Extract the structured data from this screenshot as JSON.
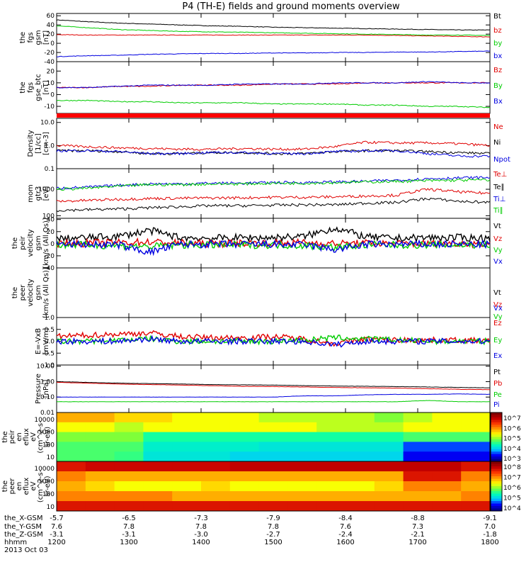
{
  "chart_data": {
    "type": "line",
    "title": "P4 (TH-E) fields and ground moments overview",
    "time_ticks": [
      "1200",
      "1300",
      "1400",
      "1500",
      "1600",
      "1700",
      "1800"
    ],
    "ephemeris": [
      {
        "label": "the_X-GSM",
        "values": [
          "-5.7",
          "-6.5",
          "-7.3",
          "-7.9",
          "-8.4",
          "-8.8",
          "-9.1"
        ]
      },
      {
        "label": "the_Y-GSM",
        "values": [
          "7.6",
          "7.8",
          "7.8",
          "7.8",
          "7.6",
          "7.3",
          "7.0"
        ]
      },
      {
        "label": "the_Z-GSM",
        "values": [
          "-3.1",
          "-3.1",
          "-3.0",
          "-2.7",
          "-2.4",
          "-2.1",
          "-1.8"
        ]
      },
      {
        "label": "hhmm",
        "values": []
      }
    ],
    "date_label": "2013 Oct 03",
    "panels": [
      {
        "id": "fgs-gsm",
        "ylabel": [
          "the",
          "fgs",
          "gsm",
          "[nT]"
        ],
        "scale": "linear",
        "ylim": [
          -40,
          65
        ],
        "yticks": [
          "60",
          "40",
          "20",
          "0",
          "-20",
          "-40"
        ],
        "series": [
          {
            "name": "Bt",
            "color": "#000000",
            "values": [
              51,
              47,
              44,
              42,
              40,
              38,
              37,
              35,
              34,
              33,
              32,
              31,
              30,
              29,
              29
            ]
          },
          {
            "name": "bz",
            "color": "#e00000",
            "values": [
              19,
              18,
              18,
              18,
              18,
              18,
              18,
              18,
              18,
              18,
              18,
              17,
              16,
              15,
              14
            ]
          },
          {
            "name": "by",
            "color": "#00cc00",
            "values": [
              38,
              34,
              30,
              28,
              26,
              25,
              24,
              23,
              22,
              21,
              20,
              19,
              18,
              18,
              17
            ]
          },
          {
            "name": "bx",
            "color": "#0000e0",
            "values": [
              -29,
              -27,
              -26,
              -24,
              -23,
              -22,
              -22,
              -21,
              -21,
              -20,
              -20,
              -19,
              -19,
              -18,
              -17
            ]
          }
        ]
      },
      {
        "id": "fgs-gse",
        "ylabel": [
          "the",
          "fgs",
          "gse_btc",
          "[nT]"
        ],
        "scale": "linear",
        "ylim": [
          -16,
          28
        ],
        "yticks": [
          "20",
          "10",
          "0",
          "-10"
        ],
        "series": [
          {
            "name": "Bz",
            "color": "#e00000",
            "values": [
              6,
              6,
              7,
              7,
              8,
              8,
              8,
              9,
              9,
              9,
              10,
              10,
              10,
              10,
              10
            ]
          },
          {
            "name": "By",
            "color": "#00cc00",
            "values": [
              -5,
              -5,
              -6,
              -6,
              -7,
              -7,
              -7,
              -8,
              -8,
              -8,
              -9,
              -9,
              -10,
              -10,
              -11
            ]
          },
          {
            "name": "Bx",
            "color": "#0000e0",
            "values": [
              6,
              6,
              7,
              8,
              8,
              8,
              9,
              9,
              9,
              10,
              10,
              10,
              11,
              10,
              10
            ]
          }
        ]
      },
      {
        "id": "density",
        "ylabel": [
          "Density",
          "[1/cc]",
          "[cm-3]"
        ],
        "scale": "log",
        "ylim": [
          0.1,
          15
        ],
        "yticks": [
          "10.0",
          "1.0",
          "0.1"
        ],
        "series": [
          {
            "name": "Ne",
            "color": "#e00000",
            "values": [
              1.0,
              0.9,
              0.8,
              0.75,
              0.7,
              0.7,
              0.75,
              0.7,
              0.7,
              0.9,
              1.4,
              1.3,
              1.3,
              1.2,
              1.0
            ]
          },
          {
            "name": "Ni",
            "color": "#000000",
            "values": [
              0.6,
              0.6,
              0.55,
              0.45,
              0.45,
              0.5,
              0.5,
              0.45,
              0.45,
              0.55,
              0.6,
              0.6,
              0.55,
              0.5,
              0.45
            ]
          },
          {
            "name": "Npot",
            "color": "#0000e0",
            "values": [
              0.6,
              0.6,
              0.55,
              0.45,
              0.45,
              0.5,
              0.5,
              0.45,
              0.45,
              0.55,
              0.6,
              0.6,
              0.45,
              0.35,
              0.35
            ]
          }
        ]
      },
      {
        "id": "temperature",
        "ylabel": [
          "mom",
          "gtr3",
          "[eV]"
        ],
        "scale": "log",
        "ylim": [
          80,
          6000
        ],
        "yticks": [
          "1000",
          "100"
        ],
        "series": [
          {
            "name": "Te⊥",
            "color": "#e00000",
            "values": [
              350,
              380,
              420,
              450,
              460,
              470,
              480,
              500,
              500,
              520,
              560,
              600,
              1000,
              800,
              700
            ]
          },
          {
            "name": "Te∥",
            "color": "#000000",
            "values": [
              160,
              170,
              180,
              200,
              220,
              240,
              240,
              250,
              260,
              260,
              300,
              320,
              450,
              350,
              320
            ]
          },
          {
            "name": "Ti⊥",
            "color": "#0000e0",
            "values": [
              1100,
              1200,
              1400,
              1600,
              1600,
              1700,
              1700,
              1800,
              1800,
              1900,
              2000,
              2200,
              2500,
              2700,
              2800
            ]
          },
          {
            "name": "Ti∥",
            "color": "#00cc00",
            "values": [
              1000,
              1100,
              1300,
              1500,
              1500,
              1600,
              1600,
              1700,
              1700,
              1800,
              1900,
              2000,
              2100,
              2200,
              2300
            ]
          }
        ]
      },
      {
        "id": "peir-velocity",
        "ylabel": [
          "the",
          "peir",
          "velocity",
          "gsm",
          "[km/s (All Qs)]"
        ],
        "scale": "linear",
        "ylim": [
          -40,
          42
        ],
        "yticks": [
          "40",
          "20",
          "0",
          "-20",
          "-40"
        ],
        "series": [
          {
            "name": "Vt",
            "color": "#000000",
            "values": [
              8,
              10,
              12,
              22,
              10,
              9,
              10,
              10,
              12,
              26,
              11,
              9,
              10,
              10,
              9
            ]
          },
          {
            "name": "Vz",
            "color": "#e00000",
            "values": [
              0,
              1,
              2,
              3,
              1,
              0,
              1,
              1,
              2,
              0,
              1,
              0,
              0,
              1,
              0
            ]
          },
          {
            "name": "Vy",
            "color": "#00cc00",
            "values": [
              -2,
              -2,
              -3,
              -5,
              -2,
              -2,
              -2,
              -2,
              -3,
              -6,
              -2,
              -2,
              -2,
              -2,
              -2
            ]
          },
          {
            "name": "Vx",
            "color": "#0000e0",
            "values": [
              -1,
              -1,
              -2,
              -14,
              -1,
              -1,
              -1,
              -1,
              -2,
              -10,
              -1,
              -1,
              -1,
              -1,
              -1
            ]
          }
        ]
      },
      {
        "id": "peer-velocity",
        "ylabel": [
          "the",
          "peer",
          "velocity",
          "gsm",
          "[km/s (All Qs)]"
        ],
        "scale": "linear",
        "ylim": [
          -40,
          42
        ],
        "yticks": [],
        "series": [
          {
            "name": "Vt",
            "color": "#000000",
            "values": []
          },
          {
            "name": "Vz",
            "color": "#e00000",
            "values": []
          },
          {
            "name": "Vy",
            "color": "#00cc00",
            "values": []
          },
          {
            "name": "Vx",
            "color": "#0000e0",
            "values": []
          }
        ]
      },
      {
        "id": "efield",
        "ylabel": [
          "E=-VxB",
          "[mV/m]"
        ],
        "scale": "linear",
        "ylim": [
          -1,
          1
        ],
        "yticks": [
          "1.0",
          "0.5",
          "0.0",
          "-0.5",
          "-1.0"
        ],
        "series": [
          {
            "name": "Ez",
            "color": "#e00000",
            "values": [
              0.2,
              0.25,
              0.3,
              0.35,
              0.2,
              0.15,
              0.15,
              0.2,
              0.1,
              -0.1,
              0.1,
              0.05,
              0.05,
              0.05,
              0.0
            ]
          },
          {
            "name": "Ey",
            "color": "#00cc00",
            "values": [
              0.0,
              0.0,
              0.05,
              0.1,
              0.0,
              0.0,
              0.0,
              0.0,
              0.05,
              0.15,
              0.1,
              0.05,
              0.0,
              0.0,
              0.0
            ]
          },
          {
            "name": "Ex",
            "color": "#0000e0",
            "values": [
              0.0,
              0.0,
              0.0,
              0.1,
              0.0,
              0.0,
              0.0,
              0.0,
              0.0,
              -0.15,
              0.0,
              0.0,
              0.0,
              0.0,
              0.0
            ]
          }
        ]
      },
      {
        "id": "pressure",
        "ylabel": [
          "Pressure",
          "[nPa]"
        ],
        "scale": "log",
        "ylim": [
          0.01,
          12
        ],
        "yticks": [
          "10.00",
          "1.00",
          "0.10",
          "0.01"
        ],
        "series": [
          {
            "name": "Pt",
            "color": "#000000",
            "values": [
              1.0,
              0.9,
              0.8,
              0.75,
              0.7,
              0.65,
              0.62,
              0.6,
              0.55,
              0.52,
              0.5,
              0.48,
              0.45,
              0.42,
              0.4
            ]
          },
          {
            "name": "Pb",
            "color": "#e00000",
            "values": [
              0.9,
              0.8,
              0.7,
              0.65,
              0.6,
              0.55,
              0.5,
              0.48,
              0.45,
              0.42,
              0.4,
              0.38,
              0.35,
              0.32,
              0.3
            ]
          },
          {
            "name": "Pe",
            "color": "#00cc00",
            "values": [
              0.05,
              0.05,
              0.05,
              0.05,
              0.05,
              0.05,
              0.05,
              0.05,
              0.05,
              0.05,
              0.05,
              0.05,
              0.06,
              0.05,
              0.05
            ]
          },
          {
            "name": "Pi",
            "color": "#0000e0",
            "values": [
              0.1,
              0.1,
              0.1,
              0.1,
              0.1,
              0.1,
              0.1,
              0.1,
              0.12,
              0.12,
              0.14,
              0.15,
              0.15,
              0.16,
              0.15
            ]
          }
        ]
      }
    ],
    "spectrograms": [
      {
        "id": "peir-eflux",
        "type": "heatmap",
        "ylabel": [
          "the",
          "peir",
          "en",
          "eflux",
          "eV",
          "(cm^2-s-",
          "sr-eV)"
        ],
        "yticks": [
          "10000",
          "1000",
          "100",
          "10"
        ],
        "colorbar_ticks": [
          "10^7",
          "10^6",
          "10^5",
          "10^4",
          "10^3"
        ],
        "levels": [
          [
            0.35,
            0.35,
            0.4,
            0.4,
            0.45,
            0.45,
            0.45,
            0.5,
            0.5,
            0.5,
            0.5,
            0.55,
            0.5,
            0.45,
            0.45
          ],
          [
            0.45,
            0.45,
            0.5,
            0.45,
            0.45,
            0.45,
            0.45,
            0.45,
            0.45,
            0.5,
            0.5,
            0.5,
            0.45,
            0.45,
            0.45
          ],
          [
            0.55,
            0.55,
            0.55,
            0.65,
            0.65,
            0.65,
            0.65,
            0.65,
            0.65,
            0.65,
            0.65,
            0.65,
            0.6,
            0.6,
            0.6
          ],
          [
            0.6,
            0.6,
            0.6,
            0.7,
            0.7,
            0.7,
            0.7,
            0.72,
            0.72,
            0.72,
            0.72,
            0.72,
            0.85,
            0.85,
            0.85
          ],
          [
            0.6,
            0.6,
            0.62,
            0.72,
            0.72,
            0.72,
            0.75,
            0.75,
            0.75,
            0.75,
            0.75,
            0.75,
            0.9,
            0.9,
            0.9
          ]
        ]
      },
      {
        "id": "peer-eflux",
        "type": "heatmap",
        "ylabel": [
          "the",
          "peer",
          "en",
          "eflux",
          "eV",
          "(cm^2-s-",
          "sr-eV)"
        ],
        "yticks": [
          "10000",
          "1000",
          "100",
          "10"
        ],
        "colorbar_ticks": [
          "10^8",
          "10^7",
          "10^6",
          "10^5",
          "10^4"
        ],
        "levels": [
          [
            0.15,
            0.12,
            0.12,
            0.12,
            0.12,
            0.12,
            0.1,
            0.1,
            0.1,
            0.1,
            0.1,
            0.1,
            0.1,
            0.1,
            0.15
          ],
          [
            0.3,
            0.35,
            0.35,
            0.35,
            0.35,
            0.35,
            0.35,
            0.35,
            0.35,
            0.35,
            0.35,
            0.35,
            0.15,
            0.15,
            0.3
          ],
          [
            0.35,
            0.4,
            0.45,
            0.45,
            0.45,
            0.4,
            0.45,
            0.45,
            0.45,
            0.45,
            0.45,
            0.4,
            0.3,
            0.3,
            0.35
          ],
          [
            0.3,
            0.3,
            0.3,
            0.3,
            0.35,
            0.35,
            0.35,
            0.35,
            0.35,
            0.35,
            0.35,
            0.35,
            0.35,
            0.35,
            0.3
          ],
          [
            0.15,
            0.15,
            0.15,
            0.15,
            0.15,
            0.15,
            0.15,
            0.15,
            0.15,
            0.15,
            0.15,
            0.15,
            0.15,
            0.15,
            0.15
          ]
        ]
      }
    ]
  }
}
